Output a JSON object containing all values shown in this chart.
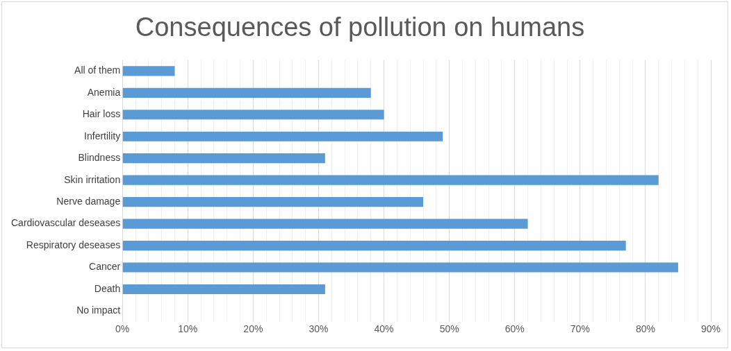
{
  "chart_data": {
    "type": "bar",
    "orientation": "horizontal",
    "title": "Consequences of pollution on humans",
    "categories": [
      "All of them",
      "Anemia",
      "Hair loss",
      "Infertility",
      "Blindness",
      "Skin irritation",
      "Nerve damage",
      "Cardiovascular deseases",
      "Respiratory deseases",
      "Cancer",
      "Death",
      "No impact"
    ],
    "values": [
      8,
      38,
      40,
      49,
      31,
      82,
      46,
      62,
      77,
      85,
      31,
      0
    ],
    "color": "#5b9bd5",
    "xlim": [
      0,
      90
    ],
    "xticks": [
      {
        "value": 0,
        "label": "0%"
      },
      {
        "value": 2,
        "label": null
      },
      {
        "value": 4,
        "label": null
      },
      {
        "value": 6,
        "label": null
      },
      {
        "value": 8,
        "label": null
      },
      {
        "value": 10,
        "label": "10%"
      },
      {
        "value": 12,
        "label": null
      },
      {
        "value": 14,
        "label": null
      },
      {
        "value": 16,
        "label": null
      },
      {
        "value": 18,
        "label": null
      },
      {
        "value": 20,
        "label": "20%"
      },
      {
        "value": 22,
        "label": null
      },
      {
        "value": 24,
        "label": null
      },
      {
        "value": 26,
        "label": null
      },
      {
        "value": 28,
        "label": null
      },
      {
        "value": 30,
        "label": "30%"
      },
      {
        "value": 32,
        "label": null
      },
      {
        "value": 34,
        "label": null
      },
      {
        "value": 36,
        "label": null
      },
      {
        "value": 38,
        "label": null
      },
      {
        "value": 40,
        "label": "40%"
      },
      {
        "value": 42,
        "label": null
      },
      {
        "value": 44,
        "label": null
      },
      {
        "value": 46,
        "label": null
      },
      {
        "value": 48,
        "label": null
      },
      {
        "value": 50,
        "label": "50%"
      },
      {
        "value": 52,
        "label": null
      },
      {
        "value": 54,
        "label": null
      },
      {
        "value": 56,
        "label": null
      },
      {
        "value": 58,
        "label": null
      },
      {
        "value": 60,
        "label": "60%"
      },
      {
        "value": 62,
        "label": null
      },
      {
        "value": 64,
        "label": null
      },
      {
        "value": 66,
        "label": null
      },
      {
        "value": 68,
        "label": null
      },
      {
        "value": 70,
        "label": "70%"
      },
      {
        "value": 72,
        "label": null
      },
      {
        "value": 74,
        "label": null
      },
      {
        "value": 76,
        "label": null
      },
      {
        "value": 78,
        "label": null
      },
      {
        "value": 80,
        "label": "80%"
      },
      {
        "value": 82,
        "label": null
      },
      {
        "value": 84,
        "label": null
      },
      {
        "value": 86,
        "label": null
      },
      {
        "value": 88,
        "label": null
      },
      {
        "value": 90,
        "label": "90%"
      }
    ],
    "grid": "x"
  }
}
